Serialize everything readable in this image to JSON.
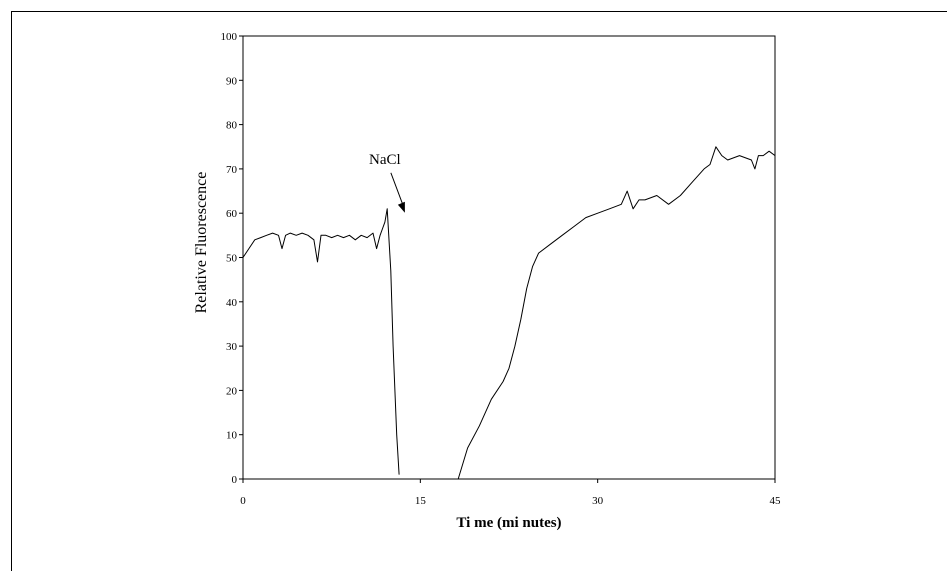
{
  "chart_data": {
    "type": "line",
    "title": "",
    "xlabel": "Ti me (mi nutes)",
    "ylabel": "Relative Fluorescence",
    "xlim": [
      0,
      45
    ],
    "ylim": [
      0,
      100
    ],
    "x_ticks": [
      0,
      15,
      30,
      45
    ],
    "x_tick_labels": [
      "0",
      "15",
      "30",
      "45"
    ],
    "y_ticks": [
      0,
      10,
      20,
      30,
      40,
      50,
      60,
      70,
      80,
      90,
      100
    ],
    "y_tick_labels": [
      "0",
      "10",
      "20",
      "30",
      "40",
      "50",
      "60",
      "70",
      "80",
      "90",
      "100"
    ],
    "grid": false,
    "legend": "none",
    "annotations": [
      {
        "text": "NaCl",
        "x": 12,
        "y": 61
      }
    ],
    "series": [
      {
        "color": "#000000",
        "segments": [
          {
            "x": [
              0,
              0.5,
              1,
              1.5,
              2,
              2.5,
              3,
              3.3,
              3.6,
              4,
              4.5,
              5,
              5.5,
              6,
              6.3,
              6.6,
              7,
              7.5,
              8,
              8.5,
              9,
              9.5,
              10,
              10.5,
              11,
              11.3,
              11.6,
              12,
              12.2,
              12.5,
              12.7,
              13,
              13.2
            ],
            "y": [
              50,
              52,
              54,
              54.5,
              55,
              55.5,
              55,
              52,
              55,
              55.5,
              55,
              55.5,
              55,
              54,
              49,
              55,
              55,
              54.5,
              55,
              54.5,
              55,
              54,
              55,
              54.5,
              55.5,
              52,
              55,
              58,
              61,
              47,
              30,
              10,
              1
            ]
          },
          {
            "x": [
              18.2,
              19,
              20,
              21,
              22,
              22.5,
              23,
              23.5,
              24,
              24.5,
              25,
              26,
              27,
              28,
              29,
              30,
              31,
              32,
              32.5,
              33,
              33.5,
              34,
              35,
              36,
              37,
              38,
              39,
              39.5,
              40,
              40.5,
              41,
              42,
              43,
              43.3,
              43.6,
              44,
              44.5,
              45
            ],
            "y": [
              0,
              7,
              12,
              18,
              22,
              25,
              30,
              36,
              43,
              48,
              51,
              53,
              55,
              57,
              59,
              60,
              61,
              62,
              65,
              61,
              63,
              63,
              64,
              62,
              64,
              67,
              70,
              71,
              75,
              73,
              72,
              73,
              72,
              70,
              73,
              73,
              74,
              73
            ]
          }
        ]
      }
    ]
  }
}
